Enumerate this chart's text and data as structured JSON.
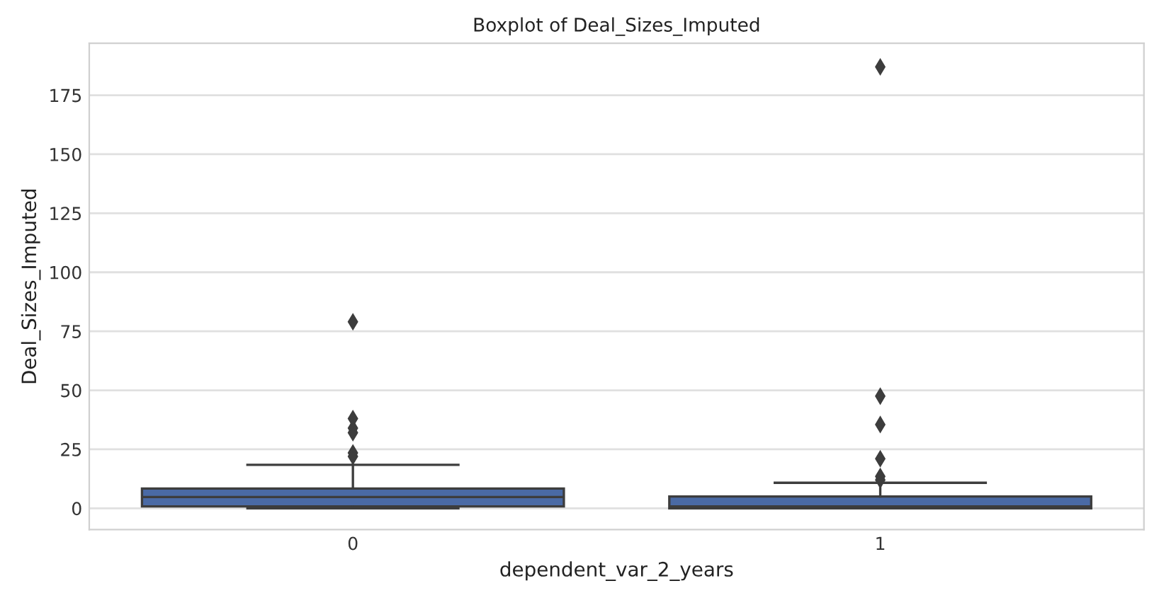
{
  "chart_data": {
    "type": "box",
    "title": "Boxplot of Deal_Sizes_Imputed",
    "xlabel": "dependent_var_2_years",
    "ylabel": "Deal_Sizes_Imputed",
    "categories": [
      "0",
      "1"
    ],
    "series": [
      {
        "color": "#4a6aa5",
        "boxes": [
          {
            "low": 0,
            "q1": 0.8,
            "median": 4.8,
            "q3": 8.4,
            "high": 18.4,
            "outliers": [
              79,
              38,
              34,
              32,
              23.5,
              22
            ]
          },
          {
            "low": 0,
            "q1": 0,
            "median": 0.8,
            "q3": 5,
            "high": 10.8,
            "outliers": [
              187,
              47.5,
              35.5,
              21,
              13.5,
              12
            ]
          }
        ]
      }
    ],
    "ylim": [
      -9,
      197
    ],
    "yticks": [
      0,
      25,
      50,
      75,
      100,
      125,
      150,
      175
    ],
    "grid": "y",
    "marker": "diamond"
  }
}
